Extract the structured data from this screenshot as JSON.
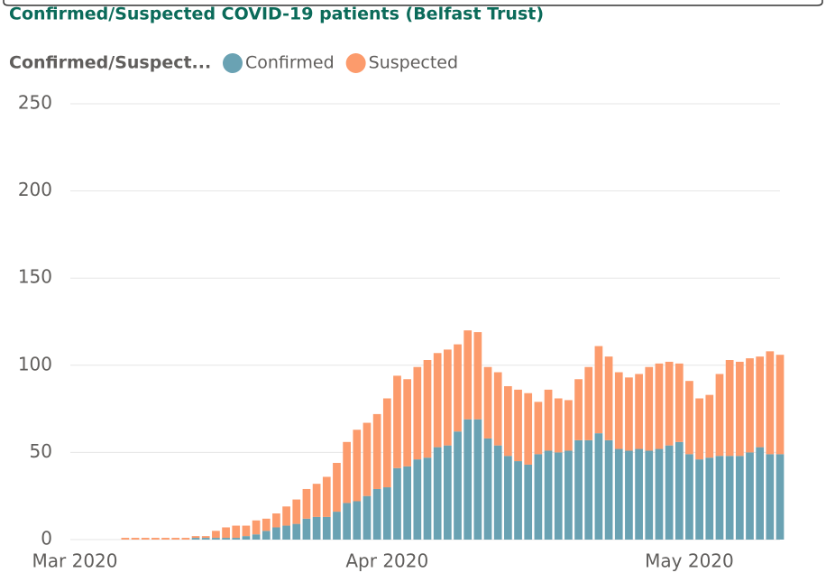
{
  "chart_data": {
    "type": "stacked-bar",
    "title": "Confirmed/Suspected COVID-19 patients (Belfast Trust)",
    "legend_title": "Confirmed/Suspect...",
    "categories": [
      "Mar 2020",
      null,
      null,
      null,
      null,
      null,
      null,
      null,
      null,
      null,
      null,
      null,
      null,
      null,
      null,
      null,
      null,
      null,
      null,
      null,
      null,
      null,
      null,
      null,
      null,
      null,
      null,
      null,
      null,
      null,
      null,
      "Apr 2020",
      null,
      null,
      null,
      null,
      null,
      null,
      null,
      null,
      null,
      null,
      null,
      null,
      null,
      null,
      null,
      null,
      null,
      null,
      null,
      null,
      null,
      null,
      null,
      null,
      null,
      null,
      null,
      null,
      null,
      "May 2020",
      null,
      null,
      null,
      null,
      null,
      null,
      null,
      null,
      null
    ],
    "series": [
      {
        "name": "Confirmed",
        "color": "#6aa2b3",
        "values": [
          null,
          null,
          null,
          null,
          null,
          0,
          0,
          0,
          0,
          0,
          0,
          0,
          1,
          1,
          1,
          1,
          1,
          2,
          3,
          5,
          7,
          8,
          9,
          12,
          13,
          13,
          16,
          21,
          22,
          25,
          29,
          30,
          41,
          42,
          46,
          47,
          53,
          54,
          62,
          69,
          69,
          58,
          54,
          48,
          45,
          43,
          49,
          51,
          50,
          51,
          57,
          57,
          61,
          57,
          52,
          51,
          52,
          51,
          52,
          54,
          56,
          49,
          46,
          47,
          48,
          48,
          48,
          50,
          53,
          49,
          49
        ]
      },
      {
        "name": "Suspected",
        "color": "#fc9b6c",
        "values": [
          null,
          null,
          null,
          null,
          null,
          1,
          1,
          1,
          1,
          1,
          1,
          1,
          1,
          1,
          4,
          6,
          7,
          6,
          8,
          7,
          8,
          11,
          14,
          17,
          19,
          23,
          28,
          35,
          41,
          42,
          43,
          51,
          53,
          50,
          53,
          56,
          54,
          55,
          50,
          51,
          50,
          41,
          42,
          40,
          41,
          41,
          30,
          35,
          31,
          29,
          35,
          42,
          50,
          48,
          44,
          42,
          43,
          48,
          49,
          48,
          45,
          42,
          35,
          36,
          47,
          55,
          54,
          54,
          52,
          59,
          57
        ]
      }
    ],
    "ylim": [
      0,
      250
    ],
    "yticks": [
      0,
      50,
      100,
      150,
      200,
      250
    ],
    "grid": true
  }
}
